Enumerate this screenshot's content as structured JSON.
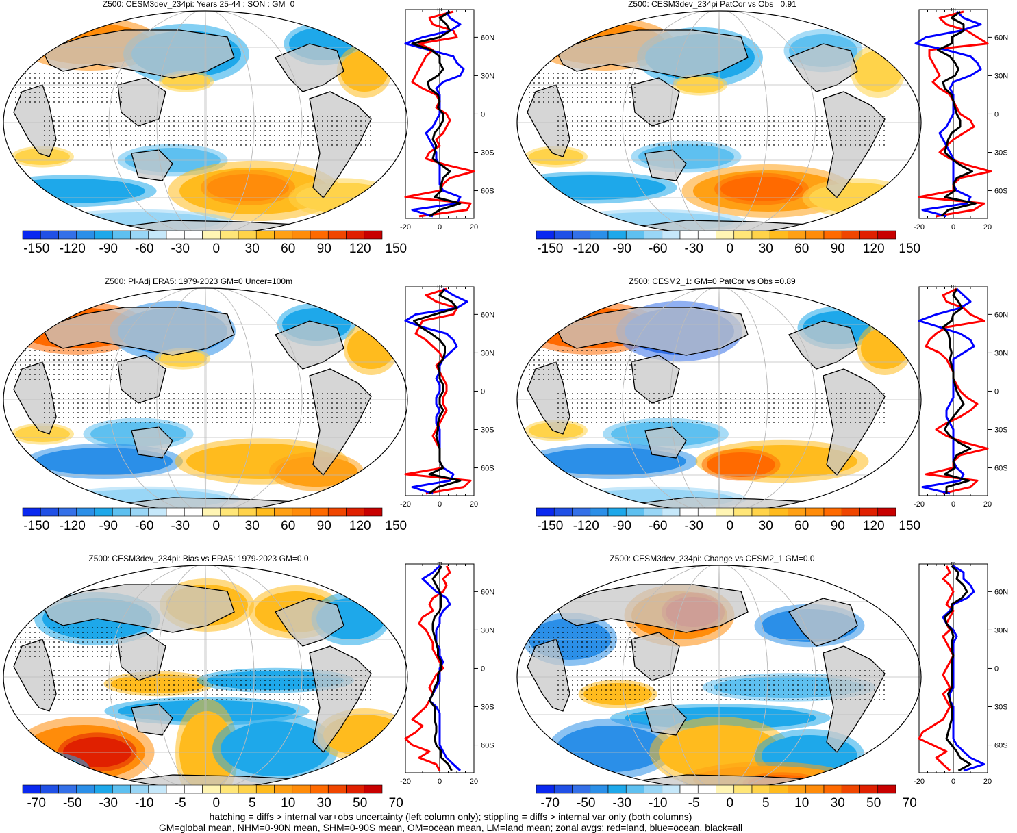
{
  "colors": {
    "land": "#c8c8c8",
    "red_line": "#ff0000",
    "blue_line": "#0000ff",
    "black_line": "#000000",
    "palette": [
      "#0a28f0",
      "#2050e6",
      "#3470e8",
      "#2b8fe8",
      "#1ea8ea",
      "#5ec0f0",
      "#99d6f6",
      "#c6e8fa",
      "#ffffff",
      "#ffffff",
      "#fff5b4",
      "#ffe678",
      "#ffd34a",
      "#ffbb1e",
      "#ffa014",
      "#ff8c0a",
      "#ff6a00",
      "#f04600",
      "#e02000",
      "#c80000"
    ]
  },
  "footer": {
    "line1": "hatching = diffs > internal var+obs uncertainty (left column only); stippling = diffs > internal var only (both columns)",
    "line2": "GM=global mean, NHM=0-90N mean, SHM=0-90S mean, OM=ocean mean, LM=land mean; zonal avgs: red=land, blue=ocean, black=all"
  },
  "chart_data": [
    {
      "type": "heatmap",
      "title": "Z500: CESM3dev_234pi: Years 25-44 : SON : GM=0",
      "colorbar_labels": [
        "-150",
        "-120",
        "-90",
        "-60",
        "-30",
        "0",
        "30",
        "60",
        "90",
        "120",
        "150"
      ],
      "zonal_avg": {
        "unit": "m",
        "xlim": [
          -20,
          20
        ],
        "x_ticks": [
          "-20",
          "0",
          "20"
        ],
        "lat_labels": [
          "60N",
          "30N",
          "0",
          "30S",
          "60S"
        ],
        "lat": [
          80,
          75,
          70,
          65,
          60,
          55,
          50,
          45,
          40,
          35,
          30,
          25,
          20,
          15,
          10,
          5,
          0,
          -5,
          -10,
          -15,
          -20,
          -25,
          -30,
          -35,
          -40,
          -45,
          -50,
          -55,
          -60,
          -65,
          -70,
          -75,
          -80
        ],
        "land": [
          8,
          -6,
          -4,
          8,
          10,
          -12,
          -4,
          -8,
          -10,
          -12,
          -14,
          -16,
          -10,
          -2,
          0,
          -2,
          4,
          6,
          4,
          2,
          -2,
          0,
          -6,
          -8,
          4,
          20,
          6,
          2,
          0,
          -20,
          18,
          16,
          -12
        ],
        "ocean": [
          4,
          6,
          12,
          6,
          -10,
          -20,
          -6,
          8,
          10,
          14,
          12,
          2,
          -2,
          0,
          0,
          0,
          0,
          -2,
          -4,
          -8,
          -6,
          -4,
          -2,
          -2,
          0,
          0,
          0,
          0,
          2,
          12,
          10,
          -16,
          -4
        ],
        "all": [
          6,
          0,
          4,
          6,
          0,
          -16,
          -5,
          0,
          0,
          2,
          -1,
          -7,
          -6,
          -1,
          0,
          -1,
          2,
          2,
          0,
          -3,
          -4,
          -2,
          -3,
          -4,
          1,
          6,
          2,
          1,
          1,
          -3,
          12,
          0,
          -6
        ]
      }
    },
    {
      "type": "heatmap",
      "title": "Z500: CESM3dev_234pi PatCor vs Obs =0.91",
      "colorbar_labels": [
        "-150",
        "-120",
        "-90",
        "-60",
        "-30",
        "0",
        "30",
        "60",
        "90",
        "120",
        "150"
      ],
      "zonal_avg": {
        "unit": "m",
        "xlim": [
          -20,
          20
        ],
        "x_ticks": [
          "-20",
          "0",
          "20"
        ],
        "lat_labels": [
          "60N",
          "30N",
          "0",
          "30S",
          "60S"
        ],
        "lat": [
          80,
          75,
          70,
          65,
          60,
          55,
          50,
          45,
          40,
          35,
          30,
          25,
          20,
          15,
          10,
          5,
          0,
          -5,
          -10,
          -15,
          -20,
          -25,
          -30,
          -35,
          -40,
          -45,
          -50,
          -55,
          -60,
          -65,
          -70,
          -75,
          -80
        ],
        "land": [
          6,
          -8,
          -4,
          8,
          14,
          20,
          -14,
          -14,
          -12,
          -10,
          -8,
          -12,
          -8,
          -2,
          0,
          2,
          4,
          10,
          12,
          6,
          0,
          -4,
          -8,
          -2,
          8,
          22,
          4,
          0,
          0,
          -20,
          18,
          12,
          -10
        ],
        "ocean": [
          2,
          6,
          16,
          4,
          -16,
          -22,
          -4,
          10,
          14,
          16,
          10,
          0,
          -2,
          0,
          0,
          0,
          0,
          -2,
          -4,
          -8,
          -6,
          -4,
          -2,
          0,
          0,
          0,
          0,
          0,
          2,
          10,
          8,
          -18,
          -4
        ],
        "all": [
          4,
          -1,
          6,
          6,
          -1,
          -1,
          -9,
          -2,
          1,
          3,
          1,
          -6,
          -5,
          -1,
          0,
          1,
          2,
          4,
          4,
          -1,
          -3,
          -4,
          -5,
          -1,
          4,
          11,
          2,
          0,
          1,
          -5,
          13,
          -3,
          -7
        ]
      }
    },
    {
      "type": "heatmap",
      "title": "Z500: PI-Adj ERA5: 1979-2023 GM=0 Uncer=100m",
      "colorbar_labels": [
        "-150",
        "-120",
        "-90",
        "-60",
        "-30",
        "0",
        "30",
        "60",
        "90",
        "120",
        "150"
      ],
      "zonal_avg": {
        "unit": "m",
        "xlim": [
          -20,
          20
        ],
        "x_ticks": [
          "-20",
          "0",
          "20"
        ],
        "lat_labels": [
          "60N",
          "30N",
          "0",
          "30S",
          "60S"
        ],
        "lat": [
          80,
          75,
          70,
          65,
          60,
          55,
          50,
          45,
          40,
          35,
          30,
          25,
          20,
          15,
          10,
          5,
          0,
          -5,
          -10,
          -15,
          -20,
          -25,
          -30,
          -35,
          -40,
          -45,
          -50,
          -55,
          -60,
          -65,
          -70,
          -75,
          -80
        ],
        "land": [
          4,
          -8,
          -2,
          10,
          8,
          -10,
          -12,
          -14,
          -8,
          -4,
          0,
          2,
          -2,
          0,
          2,
          4,
          4,
          2,
          2,
          4,
          2,
          0,
          -2,
          -4,
          -2,
          0,
          0,
          0,
          2,
          -20,
          18,
          14,
          -8
        ],
        "ocean": [
          2,
          8,
          16,
          10,
          -14,
          -20,
          -10,
          4,
          8,
          10,
          6,
          2,
          0,
          0,
          -2,
          0,
          0,
          -2,
          -2,
          0,
          -2,
          -2,
          0,
          0,
          0,
          0,
          0,
          0,
          2,
          8,
          6,
          -16,
          -4
        ],
        "all": [
          3,
          0,
          7,
          10,
          -3,
          -15,
          -11,
          -5,
          0,
          3,
          3,
          2,
          -1,
          0,
          0,
          2,
          2,
          0,
          0,
          2,
          0,
          -1,
          -1,
          -2,
          -1,
          0,
          0,
          0,
          2,
          -6,
          12,
          -1,
          -6
        ]
      }
    },
    {
      "type": "heatmap",
      "title": "Z500: CESM2_1: GM=0 PatCor vs Obs =0.89",
      "colorbar_labels": [
        "-150",
        "-120",
        "-90",
        "-60",
        "-30",
        "0",
        "30",
        "60",
        "90",
        "120",
        "150"
      ],
      "zonal_avg": {
        "unit": "m",
        "xlim": [
          -20,
          20
        ],
        "x_ticks": [
          "-20",
          "0",
          "20"
        ],
        "lat_labels": [
          "60N",
          "30N",
          "0",
          "30S",
          "60S"
        ],
        "lat": [
          80,
          75,
          70,
          65,
          60,
          55,
          50,
          45,
          40,
          35,
          30,
          25,
          20,
          15,
          10,
          5,
          0,
          -5,
          -10,
          -15,
          -20,
          -25,
          -30,
          -35,
          -40,
          -45,
          -50,
          -55,
          -60,
          -65,
          -70,
          -75,
          -80
        ],
        "land": [
          2,
          -6,
          -4,
          6,
          10,
          18,
          -4,
          -10,
          -14,
          -16,
          -8,
          -4,
          -2,
          0,
          0,
          2,
          4,
          8,
          14,
          10,
          4,
          -4,
          -10,
          -4,
          6,
          20,
          4,
          0,
          0,
          -16,
          14,
          10,
          -6
        ],
        "ocean": [
          2,
          6,
          10,
          4,
          -10,
          -20,
          -8,
          4,
          10,
          12,
          6,
          0,
          0,
          0,
          0,
          0,
          0,
          0,
          -2,
          -4,
          -4,
          -2,
          0,
          0,
          0,
          0,
          0,
          0,
          2,
          6,
          4,
          -18,
          -2
        ],
        "all": [
          2,
          0,
          3,
          5,
          0,
          -1,
          -6,
          -3,
          -2,
          -2,
          -1,
          -2,
          -1,
          0,
          0,
          1,
          2,
          4,
          6,
          3,
          0,
          -3,
          -5,
          -2,
          3,
          10,
          2,
          0,
          1,
          -5,
          9,
          -4,
          -4
        ]
      }
    },
    {
      "type": "heatmap",
      "title": "Z500: CESM3dev_234pi: Bias vs ERA5: 1979-2023  GM=0.0",
      "colorbar_labels": [
        "-70",
        "-50",
        "-30",
        "-10",
        "-5",
        "0",
        "5",
        "10",
        "30",
        "50",
        "70"
      ],
      "zonal_avg": {
        "unit": "m",
        "xlim": [
          -20,
          20
        ],
        "x_ticks": [
          "-20",
          "0",
          "20"
        ],
        "lat_labels": [
          "60N",
          "30N",
          "0",
          "30S",
          "60S"
        ],
        "lat": [
          80,
          75,
          70,
          65,
          60,
          55,
          50,
          45,
          40,
          35,
          30,
          25,
          20,
          15,
          10,
          5,
          0,
          -5,
          -10,
          -15,
          -20,
          -25,
          -30,
          -35,
          -40,
          -45,
          -50,
          -55,
          -60,
          -65,
          -70,
          -75,
          -80
        ],
        "land": [
          4,
          6,
          2,
          4,
          2,
          -4,
          -6,
          -4,
          -10,
          -12,
          -8,
          -6,
          -4,
          -4,
          -2,
          0,
          2,
          -2,
          -4,
          -6,
          -4,
          -6,
          -8,
          -12,
          -16,
          -10,
          -14,
          -20,
          -16,
          -6,
          -12,
          -2,
          0
        ],
        "ocean": [
          0,
          -4,
          -10,
          -6,
          -2,
          4,
          6,
          2,
          0,
          0,
          -2,
          -2,
          -2,
          0,
          0,
          2,
          0,
          0,
          0,
          -2,
          -4,
          -6,
          -2,
          0,
          0,
          0,
          0,
          0,
          0,
          2,
          4,
          8,
          12
        ],
        "all": [
          1,
          -1,
          -4,
          -2,
          0,
          1,
          1,
          0,
          -3,
          -4,
          -4,
          -3,
          -2,
          -1,
          -1,
          1,
          1,
          -1,
          -1,
          -3,
          -4,
          -6,
          -3,
          -3,
          -3,
          -2,
          -2,
          -3,
          -2,
          1,
          1,
          5,
          7
        ]
      }
    },
    {
      "type": "heatmap",
      "title": "Z500: CESM3dev_234pi: Change vs CESM2_1 GM=0.0",
      "colorbar_labels": [
        "-70",
        "-50",
        "-30",
        "-10",
        "-5",
        "0",
        "5",
        "10",
        "30",
        "50",
        "70"
      ],
      "zonal_avg": {
        "unit": "m",
        "xlim": [
          -20,
          20
        ],
        "x_ticks": [
          "-20",
          "0",
          "20"
        ],
        "lat_labels": [
          "60N",
          "30N",
          "0",
          "30S",
          "60S"
        ],
        "lat": [
          80,
          75,
          70,
          65,
          60,
          55,
          50,
          45,
          40,
          35,
          30,
          25,
          20,
          15,
          10,
          5,
          0,
          -5,
          -10,
          -15,
          -20,
          -25,
          -30,
          -35,
          -40,
          -45,
          -50,
          -55,
          -60,
          -65,
          -70,
          -75,
          -80
        ],
        "land": [
          -4,
          -2,
          -6,
          -2,
          0,
          -2,
          -4,
          0,
          -2,
          -4,
          -2,
          -6,
          -4,
          -2,
          0,
          -2,
          -4,
          -6,
          -4,
          -2,
          -6,
          -4,
          -2,
          -4,
          -6,
          -12,
          -18,
          -20,
          -12,
          -4,
          -10,
          -6,
          -2
        ],
        "ocean": [
          0,
          6,
          6,
          10,
          12,
          8,
          0,
          -2,
          -6,
          -4,
          0,
          2,
          0,
          0,
          0,
          0,
          0,
          0,
          0,
          0,
          -2,
          -2,
          0,
          0,
          0,
          0,
          0,
          0,
          2,
          6,
          10,
          18,
          6
        ],
        "all": [
          -1,
          3,
          2,
          6,
          8,
          5,
          -1,
          -1,
          -5,
          -4,
          -1,
          0,
          -1,
          -1,
          0,
          -1,
          -1,
          -1,
          -1,
          -1,
          -3,
          -2,
          -1,
          -1,
          -1,
          -2,
          -3,
          -4,
          -1,
          2,
          4,
          10,
          3
        ]
      }
    }
  ]
}
